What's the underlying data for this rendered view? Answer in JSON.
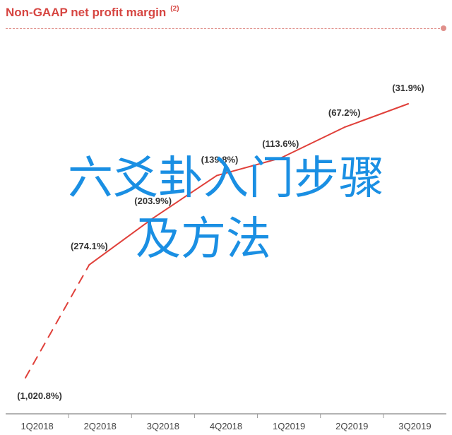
{
  "chart_data": {
    "type": "line",
    "title": "Non-GAAP net profit margin",
    "title_footnote": "(2)",
    "categories": [
      "1Q2018",
      "2Q2018",
      "3Q2018",
      "4Q2018",
      "1Q2019",
      "2Q2019",
      "3Q2019"
    ],
    "series": [
      {
        "values": [
          -1020.8,
          -274.1,
          -203.9,
          -139.8,
          -113.6,
          -67.2,
          -31.9
        ],
        "labels": [
          "(1,020.8%)",
          "(274.1%)",
          "(203.9%)",
          "(139.8%)",
          "(113.6%)",
          "(67.2%)",
          "(31.9%)"
        ],
        "color": "#e0403a"
      }
    ],
    "dashed_segment": {
      "from": "1Q2018",
      "to": "2Q2018"
    },
    "grid": false,
    "legend": "none"
  },
  "overlay": {
    "line1": "六爻卦入门步骤",
    "line2": "及方法",
    "color": "#1a8fe3"
  }
}
